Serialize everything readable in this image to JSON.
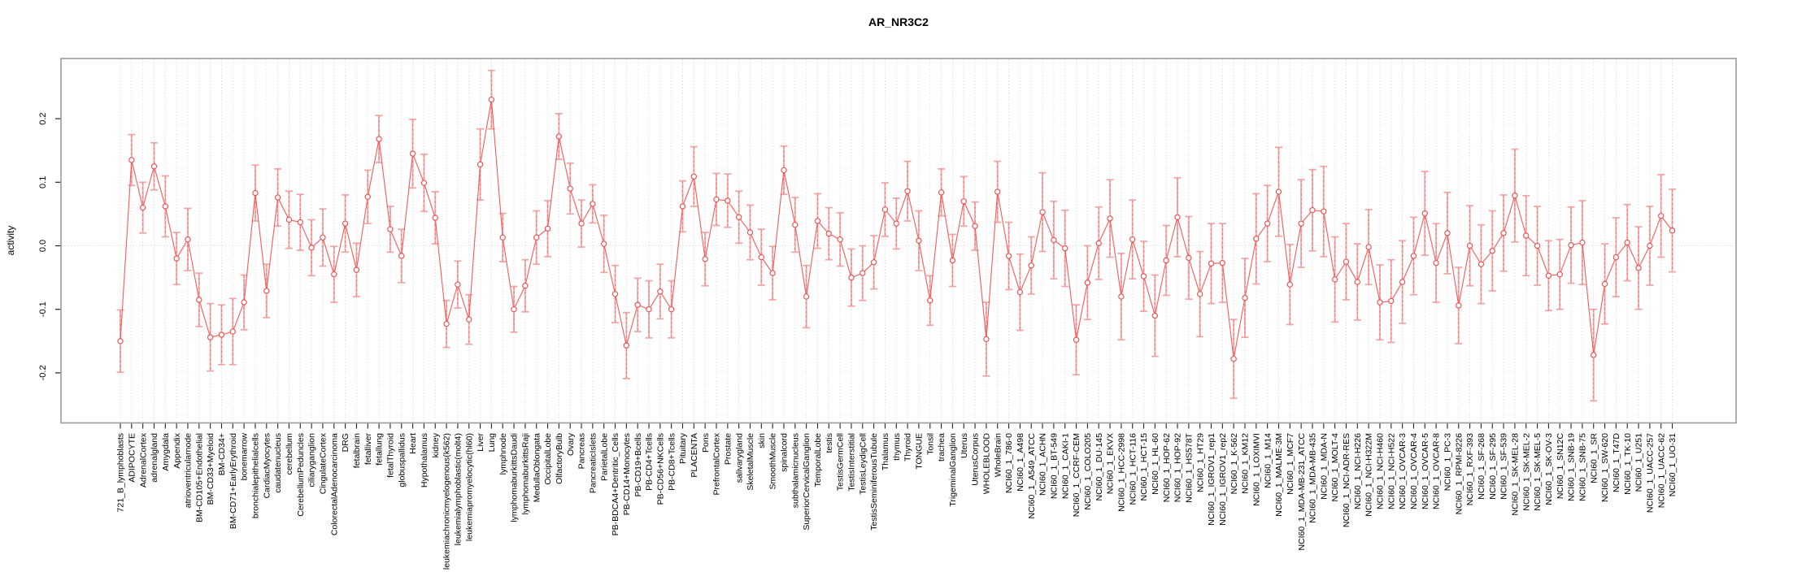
{
  "chart_data": {
    "type": "line",
    "subtype": "errorbar-profile",
    "title": "AR_NR3C2",
    "xlabel": "",
    "ylabel": "activity",
    "ylim": [
      -0.28,
      0.3
    ],
    "yticks": [
      0.2,
      0.1,
      0.0,
      -0.1,
      -0.2
    ],
    "ytick_labels": [
      "0.2",
      "0.1",
      "0.0",
      "-0.1",
      "-0.2"
    ],
    "grid": "vertical dotted line per category; dotted horizontal line at y=0",
    "legend_position": "none",
    "marker": "open-circle",
    "categories": [
      "721_B_lymphoblasts",
      "ADIPOCYTE",
      "AdrenalCortex",
      "adrenalgland",
      "Amygdala",
      "Appendix",
      "atrioventricularnode",
      "BM-CD105+Endothelial",
      "BM-CD33+Myeloid",
      "BM-CD34+",
      "BM-CD71+EarlyErythroid",
      "bonemarrow",
      "bronchialepithelialcells",
      "CardiacMyocytes",
      "caudatenucleus",
      "cerebellum",
      "CerebellumPeduncles",
      "ciliaryganglion",
      "CingulateCortex",
      "ColorectalAdenocarcinoma",
      "DRG",
      "fetalbrain",
      "fetalliver",
      "fetallung",
      "fetalThyroid",
      "globuspallidus",
      "Heart",
      "Hypothalamus",
      "kidney",
      "leukemiachronicmyelogenous(k562)",
      "leukemialymphoblastic(molt4)",
      "leukemiapromyelocytic(hl60)",
      "Liver",
      "Lung",
      "lymphnode",
      "lymphomaburkittsDaudi",
      "lymphomaburkittsRaji",
      "MedullaOblongata",
      "OccipitalLobe",
      "OlfactoryBulb",
      "Ovary",
      "Pancreas",
      "PancreaticIslets",
      "ParietalLobe",
      "PB-BDCA4+Dentritic_Cells",
      "PB-CD14+Monocytes",
      "PB-CD19+Bcells",
      "PB-CD4+Tcells",
      "PB-CD56+NKCells",
      "PB-CD8+Tcells",
      "Pituitary",
      "PLACENTA",
      "Pons",
      "PrefrontalCortex",
      "Prostate",
      "salivarygland",
      "SkeletalMuscle",
      "skin",
      "SmoothMuscle",
      "spinalcord",
      "subthalamicnucleus",
      "SuperiorCervicalGanglion",
      "TemporalLobe",
      "testis",
      "TestisGermCell",
      "TestisInterstitial",
      "TestisLeydigCell",
      "TestisSeminiferousTubule",
      "Thalamus",
      "thymus",
      "Thyroid",
      "TONGUE",
      "Tonsil",
      "trachea",
      "TrigeminalGanglion",
      "Uterus",
      "UterusCorpus",
      "WHOLEBLOOD",
      "WholeBrain",
      "NCI60_1_786-0",
      "NCI60_1_A498",
      "NCI60_1_A549_ATCC",
      "NCI60_1_ACHN",
      "NCI60_1_BT-549",
      "NCI60_1_CAKI-1",
      "NCI60_1_CCRF-CEM",
      "NCI60_1_COLO205",
      "NCI60_1_DU-145",
      "NCI60_1_EKVX",
      "NCI60_1_HCC-2998",
      "NCI60_1_HCT-116",
      "NCI60_1_HCT-15",
      "NCI60_1_HL-60",
      "NCI60_1_HOP-62",
      "NCI60_1_HOP-92",
      "NCI60_1_HS578T",
      "NCI60_1_HT29",
      "NCI60_1_IGROV1_rep1",
      "NCI60_1_IGROV1_rep2",
      "NCI60_1_K-562",
      "NCI60_1_KM12",
      "NCI60_1_LOXIMVI",
      "NCI60_1_M14",
      "NCI60_1_MALME-3M",
      "NCI60_1_MCF7",
      "NCI60_1_MDA-MB-231_ATCC",
      "NCI60_1_MDA-MB-435",
      "NCI60_1_MDA-N",
      "NCI60_1_MOLT-4",
      "NCI60_1_NCI-ADR-RES",
      "NCI60_1_NCI-H226",
      "NCI60_1_NCI-H322M",
      "NCI60_1_NCI-H460",
      "NCI60_1_NCI-H522",
      "NCI60_1_OVCAR-3",
      "NCI60_1_OVCAR-4",
      "NCI60_1_OVCAR-5",
      "NCI60_1_OVCAR-8",
      "NCI60_1_PC-3",
      "NCI60_1_RPMI-8226",
      "NCI60_1_RXF-393",
      "NCI60_1_SF-268",
      "NCI60_1_SF-295",
      "NCI60_1_SF-539",
      "NCI60_1_SK-MEL-28",
      "NCI60_1_SK-MEL-2",
      "NCI60_1_SK-MEL-5",
      "NCI60_1_SK-OV-3",
      "NCI60_1_SN12C",
      "NCI60_1_SNB-19",
      "NCI60_1_SNB-75",
      "NCI60_1_SR",
      "NCI60_1_SW-620",
      "NCI60_1_T47D",
      "NCI60_1_TK-10",
      "NCI60_1_U251",
      "NCI60_1_UACC-257",
      "NCI60_1_UACC-62",
      "NCI60_1_UO-31"
    ],
    "series": [
      {
        "name": "activity",
        "values": [
          -0.15,
          0.135,
          0.06,
          0.125,
          0.062,
          -0.02,
          0.01,
          -0.085,
          -0.144,
          -0.14,
          -0.135,
          -0.089,
          0.083,
          -0.071,
          0.076,
          0.041,
          0.037,
          -0.003,
          0.013,
          -0.045,
          0.035,
          -0.038,
          0.077,
          0.168,
          0.026,
          -0.016,
          0.145,
          0.099,
          0.044,
          -0.123,
          -0.061,
          -0.116,
          0.128,
          0.23,
          0.013,
          -0.1,
          -0.063,
          0.013,
          0.027,
          0.172,
          0.09,
          0.035,
          0.066,
          0.003,
          -0.076,
          -0.157,
          -0.093,
          -0.1,
          -0.072,
          -0.1,
          0.062,
          0.109,
          -0.021,
          0.073,
          0.071,
          0.045,
          0.021,
          -0.018,
          -0.043,
          0.119,
          0.033,
          -0.08,
          0.039,
          0.019,
          0.01,
          -0.05,
          -0.043,
          -0.026,
          0.057,
          0.035,
          0.086,
          0.008,
          -0.086,
          0.084,
          -0.023,
          0.07,
          0.031,
          -0.147,
          0.085,
          -0.016,
          -0.073,
          -0.031,
          0.053,
          0.009,
          -0.004,
          -0.148,
          -0.058,
          0.004,
          0.043,
          -0.08,
          0.01,
          -0.048,
          -0.11,
          -0.023,
          0.045,
          -0.019,
          -0.076,
          -0.028,
          -0.027,
          -0.178,
          -0.082,
          0.011,
          0.035,
          0.085,
          -0.061,
          0.035,
          0.056,
          0.054,
          -0.053,
          -0.025,
          -0.057,
          -0.002,
          -0.089,
          -0.087,
          -0.057,
          -0.016,
          0.051,
          -0.027,
          0.02,
          -0.094,
          0.0,
          -0.029,
          -0.008,
          0.02,
          0.079,
          0.016,
          0.0,
          -0.047,
          -0.045,
          0.001,
          0.005,
          -0.172,
          -0.06,
          -0.018,
          0.005,
          -0.035,
          0.0,
          0.047,
          0.024
        ],
        "errors": [
          0.049,
          0.04,
          0.04,
          0.037,
          0.048,
          0.041,
          0.049,
          0.042,
          0.053,
          0.047,
          0.052,
          0.043,
          0.044,
          0.042,
          0.045,
          0.045,
          0.044,
          0.044,
          0.045,
          0.044,
          0.045,
          0.042,
          0.042,
          0.037,
          0.036,
          0.042,
          0.054,
          0.045,
          0.041,
          0.037,
          0.037,
          0.039,
          0.056,
          0.046,
          0.038,
          0.036,
          0.041,
          0.042,
          0.044,
          0.036,
          0.04,
          0.037,
          0.03,
          0.045,
          0.045,
          0.052,
          0.042,
          0.045,
          0.043,
          0.045,
          0.04,
          0.047,
          0.042,
          0.041,
          0.042,
          0.041,
          0.043,
          0.044,
          0.042,
          0.038,
          0.043,
          0.049,
          0.043,
          0.041,
          0.042,
          0.045,
          0.043,
          0.042,
          0.042,
          0.04,
          0.047,
          0.047,
          0.039,
          0.037,
          0.041,
          0.039,
          0.038,
          0.058,
          0.048,
          0.053,
          0.06,
          0.045,
          0.062,
          0.061,
          0.06,
          0.055,
          0.058,
          0.057,
          0.061,
          0.068,
          0.062,
          0.055,
          0.064,
          0.055,
          0.062,
          0.065,
          0.067,
          0.063,
          0.062,
          0.062,
          0.062,
          0.071,
          0.06,
          0.07,
          0.063,
          0.069,
          0.064,
          0.071,
          0.067,
          0.06,
          0.06,
          0.059,
          0.059,
          0.065,
          0.065,
          0.061,
          0.066,
          0.062,
          0.064,
          0.06,
          0.063,
          0.062,
          0.063,
          0.06,
          0.073,
          0.063,
          0.062,
          0.055,
          0.055,
          0.06,
          0.066,
          0.072,
          0.063,
          0.062,
          0.06,
          0.065,
          0.062,
          0.065,
          0.065
        ]
      }
    ],
    "colors": {
      "series_line": "#ee5a58",
      "marker_stroke": "#e8504e",
      "marker_fill": "#ffffff",
      "error_bar": "#f2a3a1",
      "error_bar_dash": "#ed6f6d",
      "grid": "#d8d8d8",
      "box_border": "#9b9b9b",
      "tick": "#222222",
      "text": "#000000",
      "background": "#ffffff"
    }
  }
}
